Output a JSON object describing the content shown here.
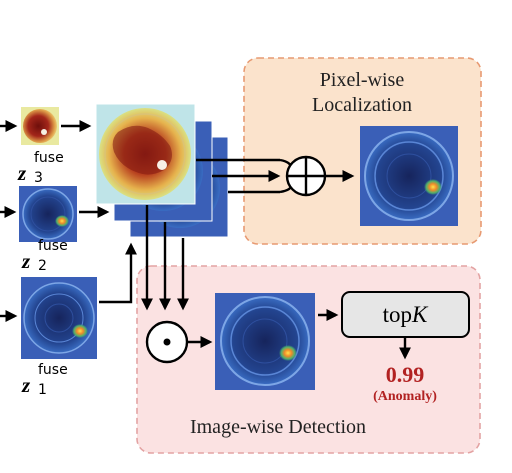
{
  "panels": {
    "localization_title_line1": "Pixel-wise",
    "localization_title_line2": "Localization",
    "detection_title": "Image-wise Detection"
  },
  "features": [
    {
      "symbol": "z",
      "superscript": "fuse",
      "subscript": "3"
    },
    {
      "symbol": "z",
      "superscript": "fuse",
      "subscript": "2"
    },
    {
      "symbol": "z",
      "superscript": "fuse",
      "subscript": "1"
    }
  ],
  "topk": {
    "prefix": "top",
    "italic": "K"
  },
  "result": {
    "score": "0.99",
    "label": "(Anomaly)"
  },
  "colors": {
    "loc_bg": "#fbe3cc",
    "loc_border": "#e79a72",
    "det_bg": "#fbe2e2",
    "det_border": "#e3a3a3",
    "score": "#b22222",
    "topk_bg": "#e6e6e6"
  }
}
